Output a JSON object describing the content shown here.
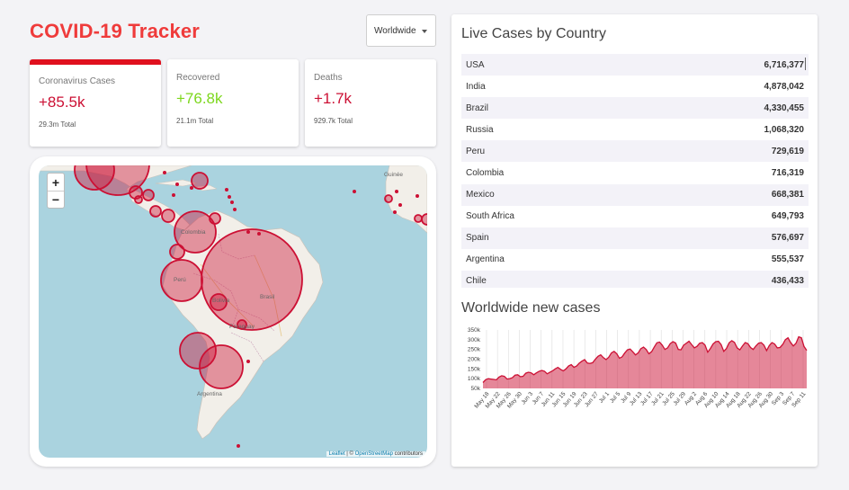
{
  "app": {
    "title": "COVID-19 Tracker"
  },
  "dropdown": {
    "selected": "Worldwide"
  },
  "stats": [
    {
      "title": "Coronavirus Cases",
      "value": "+85.5k",
      "total": "29.3m Total"
    },
    {
      "title": "Recovered",
      "value": "+76.8k",
      "total": "21.1m Total"
    },
    {
      "title": "Deaths",
      "value": "+1.7k",
      "total": "929.7k Total"
    }
  ],
  "map": {
    "zoom_in": "+",
    "zoom_out": "−",
    "labels": {
      "colombia": "Colombia",
      "peru": "Perú",
      "brasil": "Brasil",
      "bolivia": "Bolivia",
      "paraguay": "Paraguay",
      "argentina": "Argentina",
      "africa": "Guinée"
    },
    "attribution": {
      "leaflet": "Leaflet",
      "sep": " | © ",
      "osm": "OpenStreetMap",
      "rest": " contributors"
    }
  },
  "live": {
    "title": "Live Cases by Country",
    "rows": [
      {
        "country": "USA",
        "cases": "6,716,377"
      },
      {
        "country": "India",
        "cases": "4,878,042"
      },
      {
        "country": "Brazil",
        "cases": "4,330,455"
      },
      {
        "country": "Russia",
        "cases": "1,068,320"
      },
      {
        "country": "Peru",
        "cases": "729,619"
      },
      {
        "country": "Colombia",
        "cases": "716,319"
      },
      {
        "country": "Mexico",
        "cases": "668,381"
      },
      {
        "country": "South Africa",
        "cases": "649,793"
      },
      {
        "country": "Spain",
        "cases": "576,697"
      },
      {
        "country": "Argentina",
        "cases": "555,537"
      },
      {
        "country": "Chile",
        "cases": "436,433"
      }
    ]
  },
  "chart_title": "Worldwide new cases",
  "colors": {
    "accent": "#cc1034",
    "fill": "rgba(204,16,52,0.5)",
    "recovered": "#7dd71d",
    "title": "#ef3b3b"
  },
  "chart_data": {
    "type": "area",
    "y_ticks": [
      "50k",
      "100k",
      "150k",
      "200k",
      "250k",
      "300k",
      "350k"
    ],
    "ylim": [
      50000,
      350000
    ],
    "x_tick_labels": [
      "May 18",
      "May 22",
      "May 26",
      "May 30",
      "Jun 3",
      "Jun 7",
      "Jun 11",
      "Jun 15",
      "Jun 19",
      "Jun 23",
      "Jun 27",
      "Jul 1",
      "Jul 5",
      "Jul 9",
      "Jul 13",
      "Jul 17",
      "Jul 21",
      "Jul 25",
      "Jul 29",
      "Aug 2",
      "Aug 6",
      "Aug 10",
      "Aug 14",
      "Aug 18",
      "Aug 22",
      "Aug 26",
      "Aug 30",
      "Sep 3",
      "Sep 7",
      "Sep 11"
    ],
    "series": [
      {
        "values": [
          80000,
          95000,
          100000,
          98000,
          96000,
          94000,
          108000,
          115000,
          112000,
          98000,
          100000,
          105000,
          118000,
          120000,
          110000,
          112000,
          128000,
          133000,
          130000,
          120000,
          130000,
          138000,
          142000,
          138000,
          125000,
          133000,
          140000,
          150000,
          158000,
          148000,
          140000,
          150000,
          165000,
          172000,
          158000,
          165000,
          180000,
          190000,
          198000,
          180000,
          178000,
          182000,
          200000,
          215000,
          222000,
          208000,
          198000,
          210000,
          232000,
          240000,
          228000,
          205000,
          212000,
          232000,
          248000,
          252000,
          238000,
          222000,
          232000,
          254000,
          262000,
          250000,
          228000,
          238000,
          262000,
          284000,
          288000,
          272000,
          250000,
          258000,
          280000,
          290000,
          283000,
          250000,
          248000,
          272000,
          282000,
          292000,
          275000,
          258000,
          266000,
          282000,
          285000,
          272000,
          236000,
          255000,
          278000,
          290000,
          292000,
          275000,
          240000,
          255000,
          284000,
          295000,
          286000,
          258000,
          248000,
          268000,
          285000,
          280000,
          260000,
          250000,
          268000,
          282000,
          285000,
          272000,
          244000,
          270000,
          285000,
          278000,
          258000,
          260000,
          275000,
          300000,
          310000,
          285000,
          268000,
          282000,
          315000,
          310000,
          265000,
          245000
        ]
      }
    ]
  }
}
